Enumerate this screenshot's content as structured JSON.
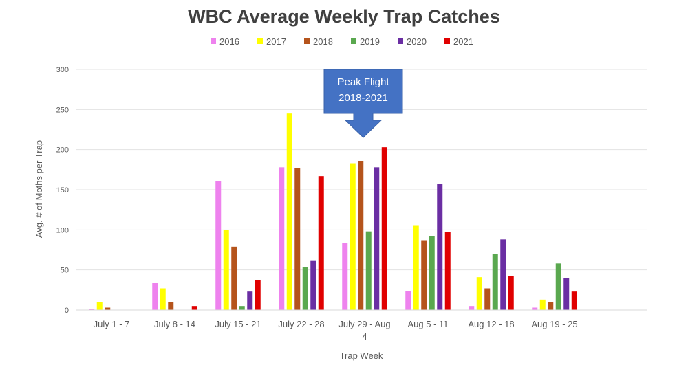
{
  "chart_data": {
    "type": "bar",
    "title": "WBC Average Weekly Trap Catches",
    "xlabel": "Trap Week",
    "ylabel": "Avg. # of Moths per Trap",
    "ylim": [
      0,
      300
    ],
    "yticks": [
      0,
      50,
      100,
      150,
      200,
      250,
      300
    ],
    "grid": true,
    "legend_position": "top",
    "categories": [
      "July 1 - 7",
      "July 8 - 14",
      "July 15 - 21",
      "July 22 - 28",
      "July 29 - Aug 4",
      "Aug 5 - 11",
      "Aug 12 - 18",
      "Aug 19 - 25"
    ],
    "series": [
      {
        "name": "2016",
        "color": "#ee82ee",
        "values": [
          1,
          34,
          161,
          178,
          84,
          24,
          5,
          3
        ]
      },
      {
        "name": "2017",
        "color": "#ffff00",
        "values": [
          10,
          27,
          100,
          245,
          183,
          105,
          41,
          13
        ]
      },
      {
        "name": "2018",
        "color": "#b5541c",
        "values": [
          3,
          10,
          79,
          177,
          186,
          87,
          27,
          10
        ]
      },
      {
        "name": "2019",
        "color": "#5aa84f",
        "values": [
          0,
          0,
          5,
          54,
          98,
          92,
          70,
          58
        ]
      },
      {
        "name": "2020",
        "color": "#6a2ea3",
        "values": [
          0,
          0,
          23,
          62,
          178,
          157,
          88,
          40
        ]
      },
      {
        "name": "2021",
        "color": "#e00000",
        "values": [
          0,
          5,
          37,
          167,
          203,
          97,
          42,
          23
        ]
      }
    ],
    "annotations": [
      {
        "text": [
          "Peak Flight",
          "2018-2021"
        ],
        "category": "July 29 - Aug 4",
        "color": "#4472c4"
      }
    ]
  }
}
